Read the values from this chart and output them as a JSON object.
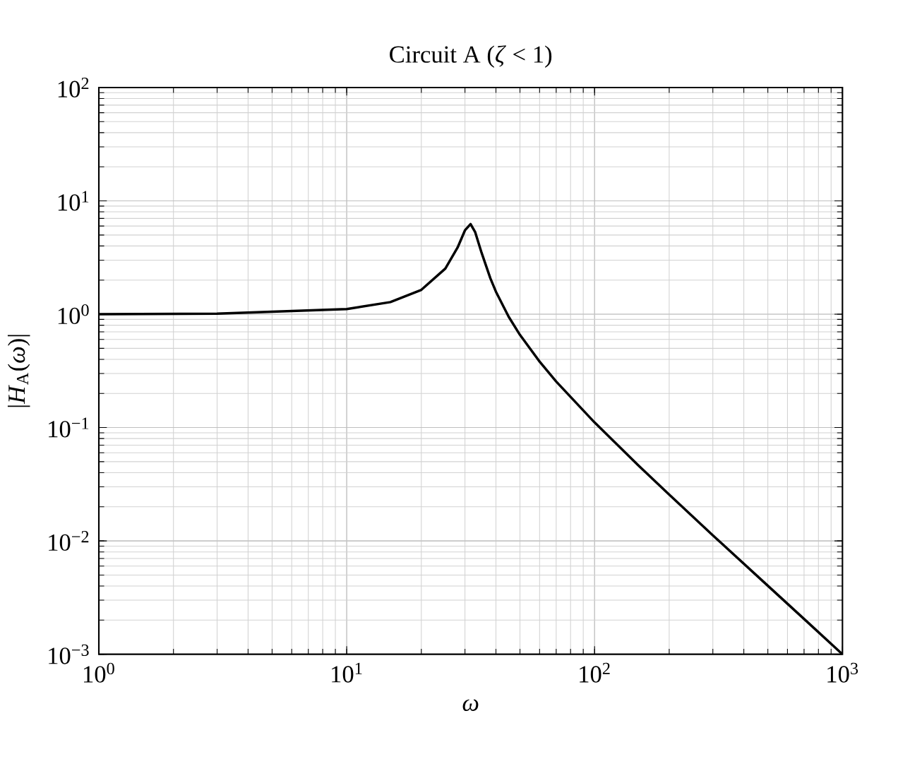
{
  "chart_data": {
    "type": "line",
    "title": "Circuit A (*ζ* < 1)",
    "xlabel": "ω",
    "ylabel": "|*H*$_{A}$(*ω*)|",
    "log": "xy",
    "grid": true,
    "xlim": [
      1,
      1000
    ],
    "ylim": [
      0.001,
      100
    ],
    "xticks": [
      {
        "value": 1,
        "label": "10$^{0}$"
      },
      {
        "value": 10,
        "label": "10$^{1}$"
      },
      {
        "value": 100,
        "label": "10$^{2}$"
      },
      {
        "value": 1000,
        "label": "10$^{3}$"
      }
    ],
    "yticks": [
      {
        "value": 0.001,
        "label": "10$^{−3}$"
      },
      {
        "value": 0.01,
        "label": "10$^{−2}$"
      },
      {
        "value": 0.1,
        "label": "10$^{−1}$"
      },
      {
        "value": 1,
        "label": "10$^{0}$"
      },
      {
        "value": 10,
        "label": "10$^{1}$"
      },
      {
        "value": 100,
        "label": "10$^{2}$"
      }
    ],
    "series": [
      {
        "color": "#000000",
        "x": [
          1,
          3,
          10,
          15,
          20,
          25,
          28,
          30,
          31.6,
          33,
          35,
          38,
          40,
          45,
          50,
          60,
          70,
          100,
          150,
          200,
          300,
          500,
          700,
          1000
        ],
        "values": [
          1.0,
          1.01,
          1.11,
          1.28,
          1.64,
          2.53,
          3.87,
          5.5,
          6.25,
          5.29,
          3.49,
          2.07,
          1.58,
          0.952,
          0.657,
          0.382,
          0.255,
          0.111,
          0.0465,
          0.0256,
          0.0112,
          0.00402,
          0.00205,
          0.001
        ]
      }
    ]
  }
}
